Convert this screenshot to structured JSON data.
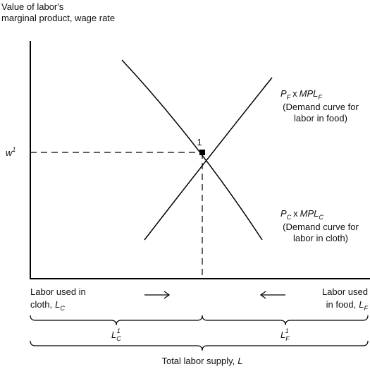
{
  "y_axis_label": [
    "Value of labor's",
    "marginal product, wage rate"
  ],
  "wage_label": {
    "symbol": "w",
    "superscript": "1"
  },
  "equilibrium_label": "1",
  "food_curve": {
    "price": "P",
    "price_sub": "F",
    "operator": "x",
    "mpl": "MPL",
    "mpl_sub": "F",
    "note": [
      "(Demand curve for",
      "labor in food)"
    ]
  },
  "cloth_curve": {
    "price": "P",
    "price_sub": "C",
    "operator": "x",
    "mpl": "MPL",
    "mpl_sub": "C",
    "note": [
      "(Demand curve for",
      "labor in cloth)"
    ]
  },
  "cloth_axis_label": {
    "line1": "Labor used in",
    "line2": "cloth,",
    "symbol": "L",
    "sub": "C"
  },
  "food_axis_label": {
    "line1": "Labor used",
    "line2": "in food,",
    "symbol": "L",
    "sub": "F"
  },
  "cloth_labor": {
    "symbol": "L",
    "sub": "C",
    "sup": "1"
  },
  "food_labor": {
    "symbol": "L",
    "sub": "F",
    "sup": "1"
  },
  "total_label": {
    "text": "Total labor supply,",
    "symbol": "L"
  }
}
